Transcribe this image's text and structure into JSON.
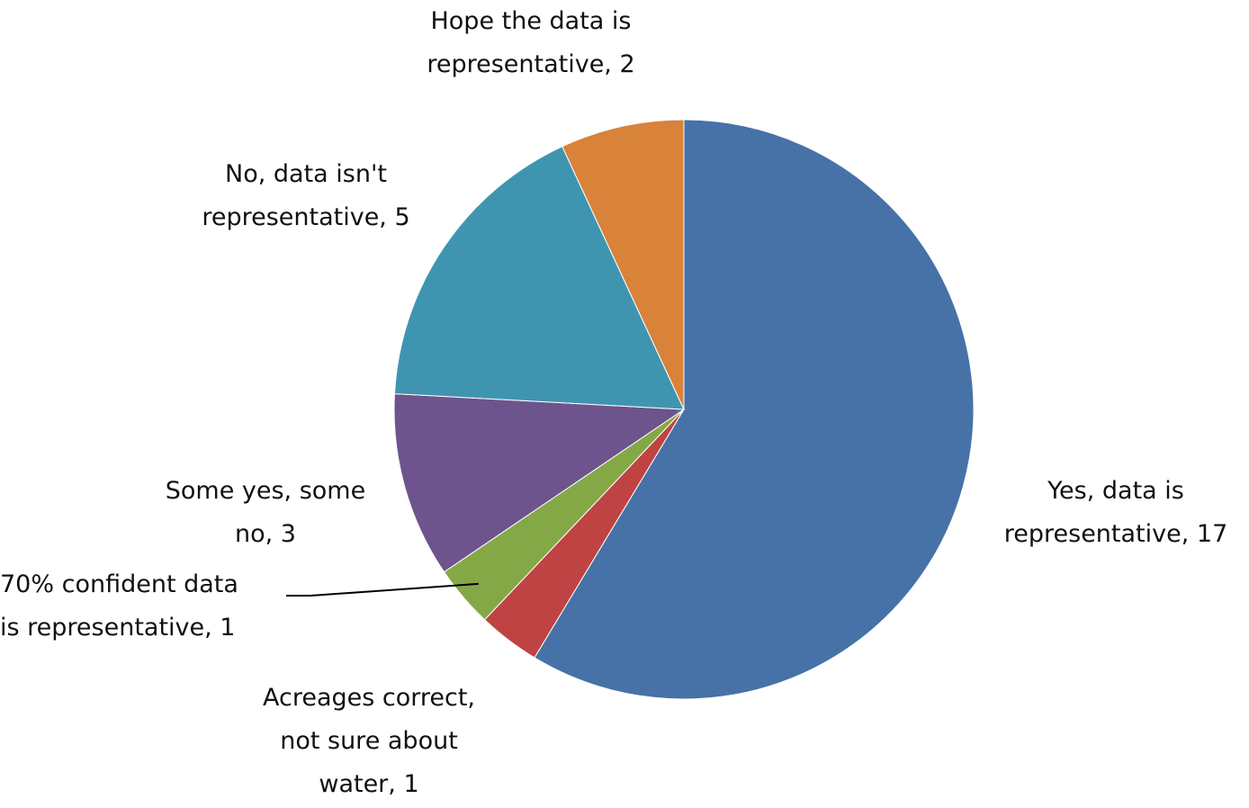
{
  "chart_data": {
    "type": "pie",
    "title": "",
    "legend": "none",
    "slices": [
      {
        "label": "Yes, data is representative",
        "value": 17,
        "color": "#4672A8",
        "label_lines": [
          "Yes, data is",
          "representative, 17"
        ]
      },
      {
        "label": "Acreages correct, not sure about water",
        "value": 1,
        "color": "#BF4342",
        "label_lines": [
          "Acreages correct,",
          "not sure about",
          "water, 1"
        ]
      },
      {
        "label": "70% confident data is representative",
        "value": 1,
        "color": "#85A847",
        "label_lines": [
          "70% confident data",
          "is representative, 1"
        ]
      },
      {
        "label": "Some yes, some no",
        "value": 3,
        "color": "#6E548D",
        "label_lines": [
          "Some yes, some",
          "no, 3"
        ]
      },
      {
        "label": "No, data isn't representative",
        "value": 5,
        "color": "#3F95B0",
        "label_lines": [
          "No, data isn't",
          "representative, 5"
        ]
      },
      {
        "label": "Hope the data is representative",
        "value": 2,
        "color": "#D8823A",
        "label_lines": [
          "Hope the data is",
          "representative, 2"
        ]
      }
    ]
  }
}
